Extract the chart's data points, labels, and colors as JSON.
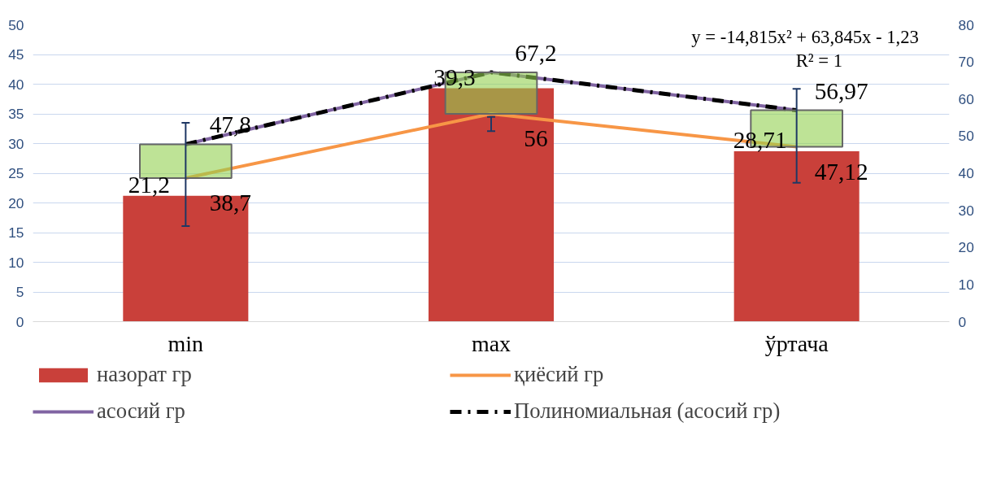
{
  "chart_data": {
    "type": "bar",
    "categories": [
      "min",
      "max",
      "ўртача"
    ],
    "ylim": [
      0,
      50
    ],
    "yticks": [
      0,
      5,
      10,
      15,
      20,
      25,
      30,
      35,
      40,
      45,
      50
    ],
    "y2lim": [
      0,
      80
    ],
    "y2ticks": [
      0,
      10,
      20,
      30,
      40,
      50,
      60,
      70,
      80
    ],
    "grid": "y",
    "legend": "bottom",
    "marker": "none",
    "annotations": [
      "y = -14,815x² + 63,845x - 1,23",
      "R² = 1"
    ],
    "series": [
      {
        "name": "назорат гр",
        "color": "#c9403a",
        "values": [
          21.2,
          39.3,
          28.71
        ],
        "errors": [
          [
            16.1,
            33.5
          ],
          [
            32.1,
            34.5
          ],
          [
            23.4,
            39.2
          ]
        ],
        "value_labels": [
          "21,2",
          "39,3",
          "28,71"
        ]
      },
      {
        "type": "line",
        "name": "асосий гр",
        "color": "#8064a2",
        "axis": "y2",
        "values": [
          47.8,
          67.2,
          56.97
        ],
        "value_labels": [
          "47,8",
          "67,2",
          "56,97"
        ]
      },
      {
        "type": "line",
        "name": "қиёсий гр",
        "color": "#f79646",
        "axis": "y2",
        "values": [
          38.7,
          56,
          47.12
        ],
        "value_labels": [
          "38,7",
          "56",
          "47,12"
        ]
      },
      {
        "type": "line",
        "name": "Полиномиальная (асосий гр)",
        "color": "#000000",
        "axis": "y2",
        "line_style": "dashed",
        "values": [
          47.8,
          67.2,
          56.97
        ]
      },
      {
        "type": "bar",
        "color": "#92d050",
        "axis": "y2",
        "base": [
          38.7,
          56,
          47.12
        ],
        "values": [
          9.1,
          11.2,
          9.85
        ]
      }
    ]
  }
}
